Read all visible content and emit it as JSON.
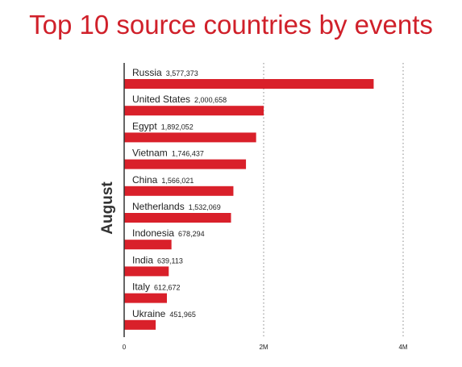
{
  "title": "Top 10 source countries by events",
  "colors": {
    "title": "#d0202a",
    "bar": "#d9202a",
    "axis": "#333333",
    "grid": "#888888",
    "text": "#222222"
  },
  "chart_data": {
    "type": "bar",
    "orientation": "horizontal",
    "title": "Top 10 source countries by events",
    "ylabel": "August",
    "xlabel": "",
    "categories": [
      "Russia",
      "United States",
      "Egypt",
      "Vietnam",
      "China",
      "Netherlands",
      "Indonesia",
      "India",
      "Italy",
      "Ukraine"
    ],
    "value_labels": [
      "3,577,373",
      "2,000,658",
      "1,892,052",
      "1,746,437",
      "1,566,021",
      "1,532,069",
      "678,294",
      "639,113",
      "612,672",
      "451,965"
    ],
    "values": [
      3577373,
      2000658,
      1892052,
      1746437,
      1566021,
      1532069,
      678294,
      639113,
      612672,
      451965
    ],
    "xlim": [
      0,
      4000000
    ],
    "xticks": [
      0,
      2000000,
      4000000
    ],
    "xtick_labels": [
      "0",
      "2M",
      "4M"
    ],
    "grid": "vertical dotted",
    "legend": "none"
  }
}
